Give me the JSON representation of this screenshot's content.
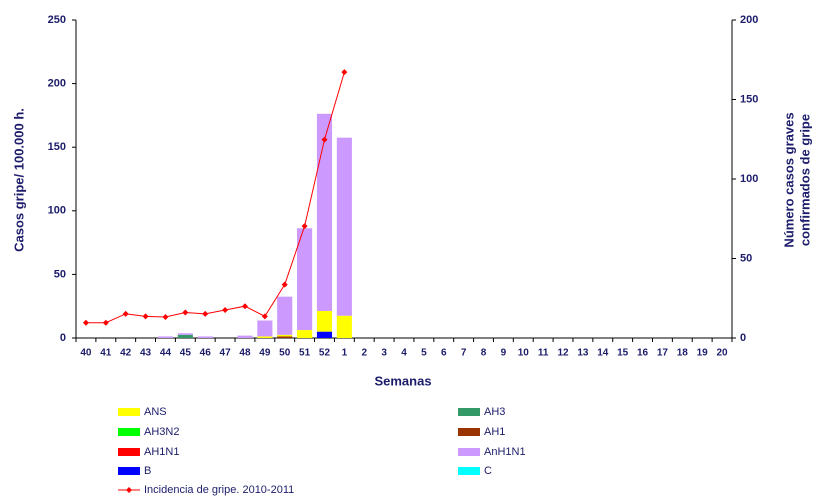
{
  "chart_data": {
    "type": "bar-line",
    "categories": [
      "40",
      "41",
      "42",
      "43",
      "44",
      "45",
      "46",
      "47",
      "48",
      "49",
      "50",
      "51",
      "52",
      "1",
      "2",
      "3",
      "4",
      "5",
      "6",
      "7",
      "8",
      "9",
      "10",
      "11",
      "12",
      "13",
      "14",
      "15",
      "16",
      "17",
      "18",
      "19",
      "20"
    ],
    "xlabel": "Semanas",
    "ylabel": "Casos gripe/ 100.000 h.",
    "y2label": [
      "Número casos graves",
      "confirmados de gripe"
    ],
    "ylim": [
      0,
      250
    ],
    "yticks": [
      0,
      50,
      100,
      150,
      200,
      250
    ],
    "y2lim": [
      0,
      200
    ],
    "y2ticks": [
      0,
      50,
      100,
      150,
      200
    ],
    "series": [
      {
        "name": "ANS",
        "color": "#ffff00",
        "axis": "y2",
        "values": [
          0,
          0,
          0,
          0,
          0,
          0,
          0,
          0,
          0,
          1,
          1,
          5,
          13,
          14,
          0,
          0,
          0,
          0,
          0,
          0,
          0,
          0,
          0,
          0,
          0,
          0,
          0,
          0,
          0,
          0,
          0,
          0,
          0
        ]
      },
      {
        "name": "AH3",
        "color": "#339966",
        "axis": "y2",
        "values": [
          0,
          0,
          0,
          0,
          0,
          2,
          0,
          0,
          0,
          0,
          0,
          0,
          0,
          0,
          0,
          0,
          0,
          0,
          0,
          0,
          0,
          0,
          0,
          0,
          0,
          0,
          0,
          0,
          0,
          0,
          0,
          0,
          0
        ]
      },
      {
        "name": "AH3N2",
        "color": "#00ff00",
        "axis": "y2",
        "values": [
          0,
          0,
          0,
          0,
          0,
          0,
          0,
          0,
          0,
          0,
          0,
          0,
          0,
          0,
          0,
          0,
          0,
          0,
          0,
          0,
          0,
          0,
          0,
          0,
          0,
          0,
          0,
          0,
          0,
          0,
          0,
          0,
          0
        ]
      },
      {
        "name": "AH1",
        "color": "#993300",
        "axis": "y2",
        "values": [
          0,
          0,
          0,
          0,
          0,
          0,
          0,
          0,
          0,
          0,
          1,
          0,
          0,
          0,
          0,
          0,
          0,
          0,
          0,
          0,
          0,
          0,
          0,
          0,
          0,
          0,
          0,
          0,
          0,
          0,
          0,
          0,
          0
        ]
      },
      {
        "name": "AH1N1",
        "color": "#ff0000",
        "axis": "y2",
        "values": [
          0,
          0,
          0,
          0,
          0,
          0,
          0,
          0,
          0,
          0,
          0,
          0,
          0,
          0,
          0,
          0,
          0,
          0,
          0,
          0,
          0,
          0,
          0,
          0,
          0,
          0,
          0,
          0,
          0,
          0,
          0,
          0,
          0
        ]
      },
      {
        "name": "AnH1N1",
        "color": "#cc99ff",
        "axis": "y2",
        "values": [
          0,
          0,
          0,
          0,
          1,
          1,
          1,
          0,
          1.5,
          10,
          24,
          64,
          124,
          112,
          0,
          0,
          0,
          0,
          0,
          0,
          0,
          0,
          0,
          0,
          0,
          0,
          0,
          0,
          0,
          0,
          0,
          0,
          0
        ]
      },
      {
        "name": "B",
        "color": "#0000ff",
        "axis": "y2",
        "values": [
          0,
          0,
          0,
          0,
          0,
          0,
          0,
          0,
          0,
          0,
          0,
          0,
          4,
          0,
          0,
          0,
          0,
          0,
          0,
          0,
          0,
          0,
          0,
          0,
          0,
          0,
          0,
          0,
          0,
          0,
          0,
          0,
          0
        ]
      },
      {
        "name": "C",
        "color": "#00ffff",
        "axis": "y2",
        "values": [
          0,
          0,
          0,
          0,
          0,
          0,
          0,
          0,
          0,
          0,
          0,
          0,
          0,
          0,
          0,
          0,
          0,
          0,
          0,
          0,
          0,
          0,
          0,
          0,
          0,
          0,
          0,
          0,
          0,
          0,
          0,
          0,
          0
        ]
      },
      {
        "name": "Incidencia de gripe. 2010-2011",
        "color": "#ff0000",
        "type": "line",
        "values": [
          12,
          12,
          19,
          17,
          16.5,
          20,
          19,
          22,
          25,
          17,
          42,
          88,
          156,
          209,
          null,
          null,
          null,
          null,
          null,
          null,
          null,
          null,
          null,
          null,
          null,
          null,
          null,
          null,
          null,
          null,
          null,
          null,
          null
        ]
      }
    ]
  }
}
